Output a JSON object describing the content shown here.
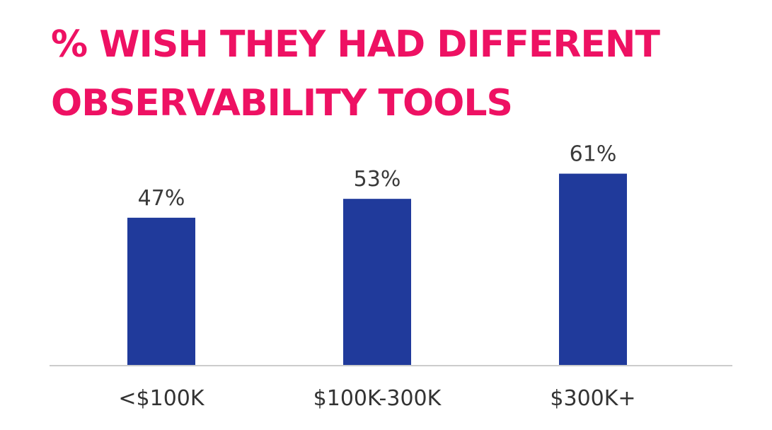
{
  "title_lines": [
    "% WISH THEY HAD DIFFERENT",
    "OBSERVABILITY TOOLS"
  ],
  "colors": {
    "title": "#ee1163",
    "bar": "#203a9b",
    "axis": "#cccccc"
  },
  "chart_data": {
    "type": "bar",
    "title": "% WISH THEY HAD DIFFERENT OBSERVABILITY TOOLS",
    "categories": [
      "<$100K",
      "$100K-300K",
      "$300K+"
    ],
    "values": [
      47,
      53,
      61
    ],
    "value_labels": [
      "47%",
      "53%",
      "61%"
    ],
    "xlabel": "",
    "ylabel": "",
    "ylim": [
      0,
      100
    ],
    "grid": false,
    "legend": "none"
  }
}
